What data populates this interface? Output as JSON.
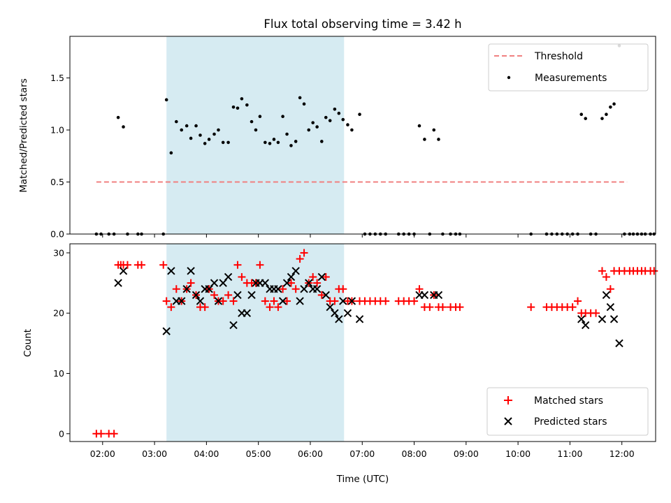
{
  "chart_data": [
    {
      "type": "scatter",
      "title": "Flux total observing time = 3.42 h",
      "xlabel": "",
      "ylabel": "Matched/Predicted stars",
      "xlim": [
        1.37,
        12.65
      ],
      "ylim": [
        0,
        1.9
      ],
      "yticks": [
        0.0,
        0.5,
        1.0,
        1.5
      ],
      "ytick_labels": [
        "0.0",
        "0.5",
        "1.0",
        "1.5"
      ],
      "shaded_span": [
        3.23,
        6.65
      ],
      "threshold": {
        "name": "Threshold",
        "value": 0.5,
        "x_range": [
          1.88,
          12.1
        ],
        "color": "#f08080"
      },
      "legend": {
        "position": "upper right",
        "entries": [
          "Threshold",
          "Measurements"
        ]
      },
      "series": [
        {
          "name": "Measurements",
          "color": "#000000",
          "points": [
            [
              1.88,
              0
            ],
            [
              1.97,
              0
            ],
            [
              2.12,
              0
            ],
            [
              2.22,
              0
            ],
            [
              2.3,
              1.12
            ],
            [
              2.4,
              1.03
            ],
            [
              2.48,
              0
            ],
            [
              2.68,
              0
            ],
            [
              2.75,
              0
            ],
            [
              3.17,
              0
            ],
            [
              3.23,
              1.29
            ],
            [
              3.32,
              0.78
            ],
            [
              3.42,
              1.08
            ],
            [
              3.52,
              1.0
            ],
            [
              3.62,
              1.04
            ],
            [
              3.7,
              0.92
            ],
            [
              3.8,
              1.04
            ],
            [
              3.88,
              0.95
            ],
            [
              3.97,
              0.87
            ],
            [
              4.05,
              0.91
            ],
            [
              4.15,
              0.96
            ],
            [
              4.23,
              1.0
            ],
            [
              4.32,
              0.88
            ],
            [
              4.42,
              0.88
            ],
            [
              4.52,
              1.22
            ],
            [
              4.6,
              1.21
            ],
            [
              4.68,
              1.3
            ],
            [
              4.78,
              1.24
            ],
            [
              4.87,
              1.08
            ],
            [
              4.95,
              1.0
            ],
            [
              5.03,
              1.13
            ],
            [
              5.13,
              0.88
            ],
            [
              5.22,
              0.87
            ],
            [
              5.3,
              0.91
            ],
            [
              5.38,
              0.88
            ],
            [
              5.47,
              1.13
            ],
            [
              5.55,
              0.96
            ],
            [
              5.63,
              0.85
            ],
            [
              5.72,
              0.89
            ],
            [
              5.8,
              1.31
            ],
            [
              5.88,
              1.25
            ],
            [
              5.97,
              1.0
            ],
            [
              6.05,
              1.07
            ],
            [
              6.13,
              1.03
            ],
            [
              6.22,
              0.89
            ],
            [
              6.3,
              1.12
            ],
            [
              6.38,
              1.09
            ],
            [
              6.47,
              1.2
            ],
            [
              6.55,
              1.16
            ],
            [
              6.63,
              1.1
            ],
            [
              6.72,
              1.05
            ],
            [
              6.8,
              1.0
            ],
            [
              6.95,
              1.15
            ],
            [
              7.05,
              0
            ],
            [
              7.15,
              0
            ],
            [
              7.25,
              0
            ],
            [
              7.35,
              0
            ],
            [
              7.45,
              0
            ],
            [
              7.7,
              0
            ],
            [
              7.8,
              0
            ],
            [
              7.9,
              0
            ],
            [
              8.0,
              0
            ],
            [
              8.1,
              1.04
            ],
            [
              8.2,
              0.91
            ],
            [
              8.3,
              0
            ],
            [
              8.38,
              1.0
            ],
            [
              8.47,
              0.91
            ],
            [
              8.55,
              0
            ],
            [
              8.7,
              0
            ],
            [
              8.8,
              0
            ],
            [
              8.88,
              0
            ],
            [
              10.25,
              0
            ],
            [
              10.55,
              0
            ],
            [
              10.65,
              0
            ],
            [
              10.75,
              0
            ],
            [
              10.85,
              0
            ],
            [
              10.95,
              0
            ],
            [
              11.05,
              0
            ],
            [
              11.15,
              0
            ],
            [
              11.22,
              1.15
            ],
            [
              11.3,
              1.11
            ],
            [
              11.4,
              0
            ],
            [
              11.5,
              0
            ],
            [
              11.62,
              1.11
            ],
            [
              11.7,
              1.15
            ],
            [
              11.78,
              1.22
            ],
            [
              11.85,
              1.25
            ],
            [
              11.95,
              1.81
            ],
            [
              12.05,
              0
            ],
            [
              12.15,
              0
            ],
            [
              12.22,
              0
            ],
            [
              12.3,
              0
            ],
            [
              12.38,
              0
            ],
            [
              12.45,
              0
            ],
            [
              12.55,
              0
            ],
            [
              12.62,
              0
            ]
          ]
        }
      ]
    },
    {
      "type": "scatter",
      "title": "",
      "xlabel": "Time (UTC)",
      "ylabel": "Count",
      "xlim": [
        1.37,
        12.65
      ],
      "ylim": [
        -1.3,
        31.5
      ],
      "yticks": [
        0,
        10,
        20,
        30
      ],
      "ytick_labels": [
        "0",
        "10",
        "20",
        "30"
      ],
      "xticks": [
        2,
        3,
        4,
        5,
        6,
        7,
        8,
        9,
        10,
        11,
        12
      ],
      "xtick_labels": [
        "02:00",
        "03:00",
        "04:00",
        "05:00",
        "06:00",
        "07:00",
        "08:00",
        "09:00",
        "10:00",
        "11:00",
        "12:00"
      ],
      "shaded_span": [
        3.23,
        6.65
      ],
      "legend": {
        "position": "lower right",
        "entries": [
          "Matched stars",
          "Predicted stars"
        ]
      },
      "series": [
        {
          "name": "Matched stars",
          "marker": "plus",
          "color": "#ff0000",
          "points": [
            [
              1.88,
              0
            ],
            [
              1.97,
              0
            ],
            [
              2.12,
              0
            ],
            [
              2.22,
              0
            ],
            [
              2.3,
              28
            ],
            [
              2.35,
              28
            ],
            [
              2.4,
              28
            ],
            [
              2.48,
              28
            ],
            [
              2.68,
              28
            ],
            [
              2.75,
              28
            ],
            [
              3.17,
              28
            ],
            [
              3.23,
              22
            ],
            [
              3.32,
              21
            ],
            [
              3.42,
              24
            ],
            [
              3.52,
              22
            ],
            [
              3.62,
              24
            ],
            [
              3.7,
              25
            ],
            [
              3.8,
              23
            ],
            [
              3.88,
              21
            ],
            [
              3.97,
              21
            ],
            [
              4.05,
              24
            ],
            [
              4.15,
              23
            ],
            [
              4.23,
              22
            ],
            [
              4.32,
              22
            ],
            [
              4.42,
              23
            ],
            [
              4.52,
              22
            ],
            [
              4.6,
              28
            ],
            [
              4.68,
              26
            ],
            [
              4.78,
              25
            ],
            [
              4.87,
              25
            ],
            [
              4.95,
              25
            ],
            [
              5.03,
              28
            ],
            [
              5.13,
              22
            ],
            [
              5.22,
              21
            ],
            [
              5.3,
              22
            ],
            [
              5.38,
              21
            ],
            [
              5.47,
              24
            ],
            [
              5.55,
              22
            ],
            [
              5.63,
              25
            ],
            [
              5.72,
              24
            ],
            [
              5.8,
              29
            ],
            [
              5.88,
              30
            ],
            [
              5.97,
              25
            ],
            [
              6.05,
              26
            ],
            [
              6.13,
              25
            ],
            [
              6.22,
              23
            ],
            [
              6.3,
              26
            ],
            [
              6.38,
              22
            ],
            [
              6.47,
              22
            ],
            [
              6.55,
              24
            ],
            [
              6.63,
              24
            ],
            [
              6.72,
              22
            ],
            [
              6.8,
              22
            ],
            [
              6.95,
              22
            ],
            [
              7.05,
              22
            ],
            [
              7.15,
              22
            ],
            [
              7.25,
              22
            ],
            [
              7.35,
              22
            ],
            [
              7.45,
              22
            ],
            [
              7.7,
              22
            ],
            [
              7.8,
              22
            ],
            [
              7.9,
              22
            ],
            [
              8.0,
              22
            ],
            [
              8.1,
              24
            ],
            [
              8.2,
              21
            ],
            [
              8.3,
              21
            ],
            [
              8.38,
              23
            ],
            [
              8.47,
              21
            ],
            [
              8.55,
              21
            ],
            [
              8.7,
              21
            ],
            [
              8.8,
              21
            ],
            [
              8.88,
              21
            ],
            [
              10.25,
              21
            ],
            [
              10.55,
              21
            ],
            [
              10.65,
              21
            ],
            [
              10.75,
              21
            ],
            [
              10.85,
              21
            ],
            [
              10.95,
              21
            ],
            [
              11.05,
              21
            ],
            [
              11.15,
              22
            ],
            [
              11.22,
              20
            ],
            [
              11.3,
              20
            ],
            [
              11.4,
              20
            ],
            [
              11.5,
              20
            ],
            [
              11.62,
              27
            ],
            [
              11.7,
              26
            ],
            [
              11.78,
              24
            ],
            [
              11.85,
              27
            ],
            [
              11.95,
              27
            ],
            [
              12.05,
              27
            ],
            [
              12.15,
              27
            ],
            [
              12.22,
              27
            ],
            [
              12.3,
              27
            ],
            [
              12.38,
              27
            ],
            [
              12.45,
              27
            ],
            [
              12.55,
              27
            ],
            [
              12.62,
              27
            ]
          ]
        },
        {
          "name": "Predicted stars",
          "marker": "cross",
          "color": "#000000",
          "points": [
            [
              2.3,
              25
            ],
            [
              2.4,
              27
            ],
            [
              3.23,
              17
            ],
            [
              3.32,
              27
            ],
            [
              3.42,
              22
            ],
            [
              3.52,
              22
            ],
            [
              3.62,
              24
            ],
            [
              3.7,
              27
            ],
            [
              3.8,
              23
            ],
            [
              3.88,
              22
            ],
            [
              3.97,
              24
            ],
            [
              4.05,
              24
            ],
            [
              4.15,
              25
            ],
            [
              4.23,
              22
            ],
            [
              4.32,
              25
            ],
            [
              4.42,
              26
            ],
            [
              4.52,
              18
            ],
            [
              4.6,
              23
            ],
            [
              4.68,
              20
            ],
            [
              4.78,
              20
            ],
            [
              4.87,
              23
            ],
            [
              4.95,
              25
            ],
            [
              5.03,
              25
            ],
            [
              5.13,
              25
            ],
            [
              5.22,
              24
            ],
            [
              5.3,
              24
            ],
            [
              5.38,
              24
            ],
            [
              5.47,
              22
            ],
            [
              5.55,
              25
            ],
            [
              5.63,
              26
            ],
            [
              5.72,
              27
            ],
            [
              5.8,
              22
            ],
            [
              5.88,
              24
            ],
            [
              5.97,
              25
            ],
            [
              6.05,
              24
            ],
            [
              6.13,
              24
            ],
            [
              6.22,
              26
            ],
            [
              6.3,
              23
            ],
            [
              6.38,
              21
            ],
            [
              6.47,
              20
            ],
            [
              6.55,
              19
            ],
            [
              6.63,
              22
            ],
            [
              6.72,
              20
            ],
            [
              6.8,
              22
            ],
            [
              6.95,
              19
            ],
            [
              8.1,
              23
            ],
            [
              8.2,
              23
            ],
            [
              8.38,
              23
            ],
            [
              8.47,
              23
            ],
            [
              11.22,
              19
            ],
            [
              11.3,
              18
            ],
            [
              11.62,
              19
            ],
            [
              11.7,
              23
            ],
            [
              11.78,
              21
            ],
            [
              11.85,
              19
            ],
            [
              11.95,
              15
            ]
          ]
        }
      ]
    }
  ]
}
